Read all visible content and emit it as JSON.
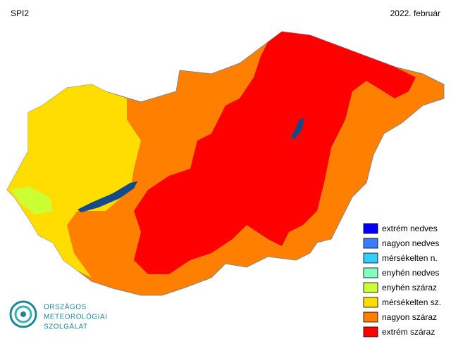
{
  "header": {
    "index": "SPI2",
    "period": "2022. február"
  },
  "legend": [
    {
      "label": "extrém nedves",
      "color": "#0000ff"
    },
    {
      "label": "nagyon nedves",
      "color": "#3c7dff"
    },
    {
      "label": "mérsékelten n.",
      "color": "#33ccff"
    },
    {
      "label": "enyhén nedves",
      "color": "#80ffbf"
    },
    {
      "label": "enyhén száraz",
      "color": "#ccff33"
    },
    {
      "label": "mérsékelten sz.",
      "color": "#ffdd00"
    },
    {
      "label": "nagyon száraz",
      "color": "#ff8000"
    },
    {
      "label": "extrém száraz",
      "color": "#ff0000"
    }
  ],
  "logo": {
    "lines": [
      "ORSZÁGOS",
      "METEOROLÓGIAI",
      "SZOLGÁLAT"
    ]
  }
}
